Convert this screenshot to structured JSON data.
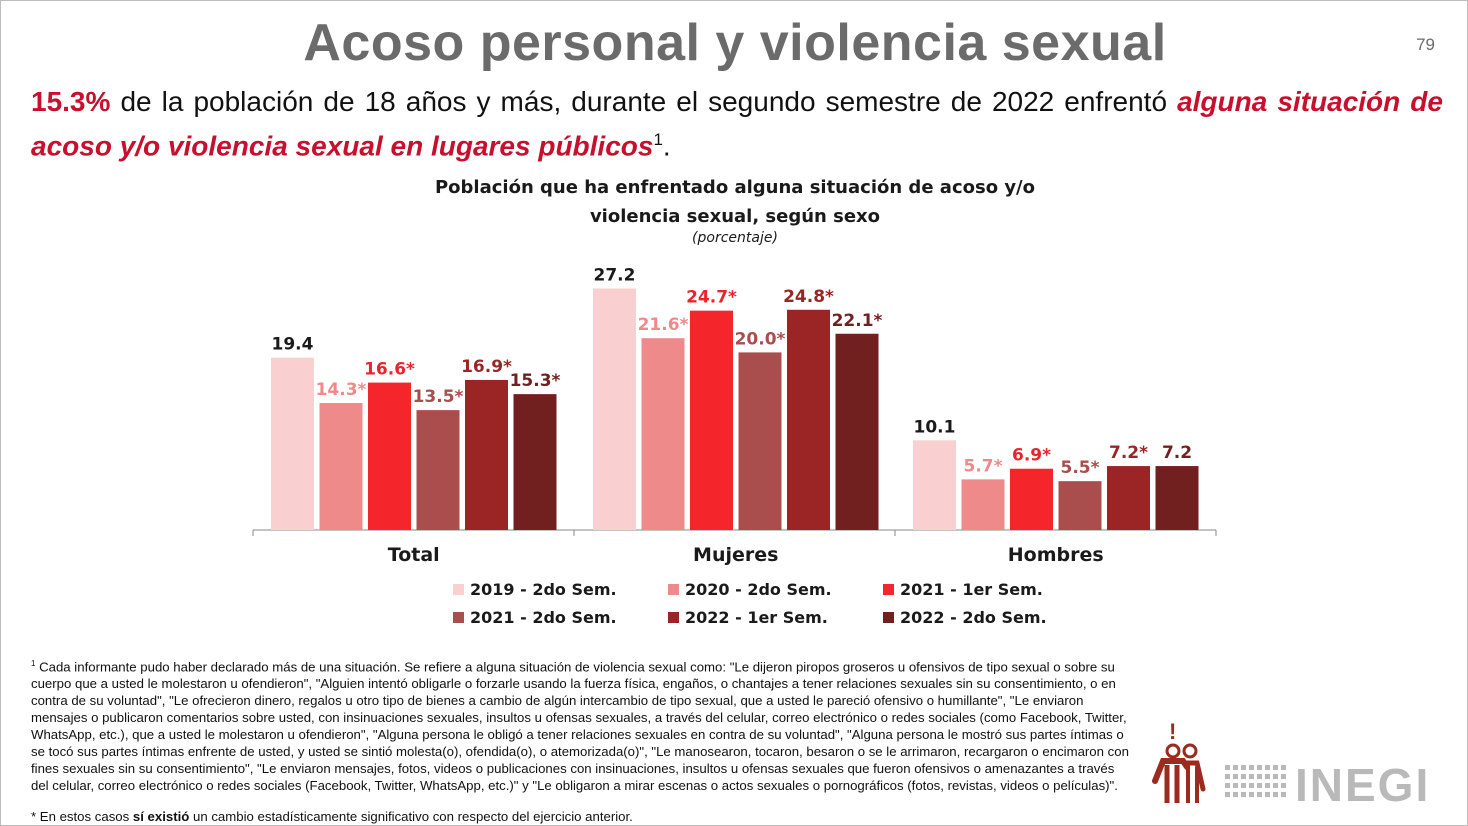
{
  "slide": {
    "title": "Acoso personal y violencia sexual",
    "page_number": "79"
  },
  "headline": {
    "pct": "15.3%",
    "text_mid": " de la población de 18 años y más, durante el segundo semestre de 2022 enfrentó ",
    "emphasis": "alguna situación de acoso y/o violencia sexual en lugares públicos",
    "sup": "1",
    "end": "."
  },
  "chart_data": {
    "type": "bar",
    "title_line1": "Población que ha enfrentado alguna situación de acoso y/o",
    "title_line2": "violencia sexual, según sexo",
    "subtitle": "(porcentaje)",
    "categories": [
      "Total",
      "Mujeres",
      "Hombres"
    ],
    "series": [
      {
        "name": "2019 - 2do Sem.",
        "color": "#f9cfd0",
        "label_color": "#1a1a1a",
        "values": [
          19.4,
          27.2,
          10.1
        ],
        "labels": [
          "19.4",
          "27.2",
          "10.1"
        ]
      },
      {
        "name": "2020 - 2do Sem.",
        "color": "#ee8a8a",
        "label_color": "#ee8a8a",
        "values": [
          14.3,
          21.6,
          5.7
        ],
        "labels": [
          "14.3*",
          "21.6*",
          "5.7*"
        ]
      },
      {
        "name": "2021 - 1er Sem.",
        "color": "#f5262b",
        "label_color": "#e8252b",
        "values": [
          16.6,
          24.7,
          6.9
        ],
        "labels": [
          "16.6*",
          "24.7*",
          "6.9*"
        ]
      },
      {
        "name": "2021 - 2do Sem.",
        "color": "#a94d4d",
        "label_color": "#a94d4d",
        "values": [
          13.5,
          20.0,
          5.5
        ],
        "labels": [
          "13.5*",
          "20.0*",
          "5.5*"
        ]
      },
      {
        "name": "2022 - 1er Sem.",
        "color": "#9b2525",
        "label_color": "#9b2525",
        "values": [
          16.9,
          24.8,
          7.2
        ],
        "labels": [
          "16.9*",
          "24.8*",
          "7.2*"
        ]
      },
      {
        "name": "2022 - 2do Sem.",
        "color": "#721f1f",
        "label_color": "#721f1f",
        "values": [
          15.3,
          22.1,
          7.2
        ],
        "labels": [
          "15.3*",
          "22.1*",
          "7.2"
        ]
      }
    ],
    "ylim": [
      0,
      30
    ],
    "grid": false,
    "legend_position": "bottom"
  },
  "footnote": {
    "sup": "1",
    "text": " Cada informante pudo haber declarado más de una situación. Se refiere a alguna situación de violencia sexual como: \"Le dijeron piropos groseros u ofensivos de tipo sexual o sobre su cuerpo que a usted le molestaron u ofendieron\", \"Alguien intentó obligarle o forzarle usando la fuerza física, engaños, o chantajes a tener relaciones sexuales sin su consentimiento, o en contra de su voluntad\", \"Le ofrecieron dinero, regalos u otro tipo de bienes a cambio de algún intercambio de tipo sexual, que a usted le pareció ofensivo o humillante\", \"Le enviaron mensajes o publicaron comentarios sobre usted, con insinuaciones sexuales, insultos u ofensas sexuales, a través del celular, correo electrónico o redes sociales (como Facebook, Twitter, WhatsApp, etc.), que a usted le molestaron u ofendieron\", \"Alguna persona le obligó a tener relaciones sexuales en contra de su voluntad\", \"Alguna persona le mostró sus partes íntimas o se tocó sus partes íntimas enfrente de usted, y usted se sintió molesta(o), ofendida(o), o atemorizada(o)\", \"Le manosearon, tocaron, besaron o se le arrimaron, recargaron o encimaron con fines sexuales sin su consentimiento\", \"Le enviaron mensajes, fotos, videos o publicaciones con insinuaciones, insultos u ofensas sexuales que fueron ofensivos o amenazantes a través del celular, correo electrónico o redes sociales (Facebook, Twitter, WhatsApp, etc.)\" y \"Le obligaron a mirar escenas o actos sexuales o pornográficos (fotos, revistas, videos o películas)\"."
  },
  "asterisk_note": {
    "pre": "* En estos casos ",
    "bold": "sí existió",
    "post": " un cambio estadísticamente significativo con respecto del ejercicio anterior."
  },
  "logo": {
    "exclamation": "!",
    "brand": "INEGI",
    "color": "#9b2a1f"
  }
}
